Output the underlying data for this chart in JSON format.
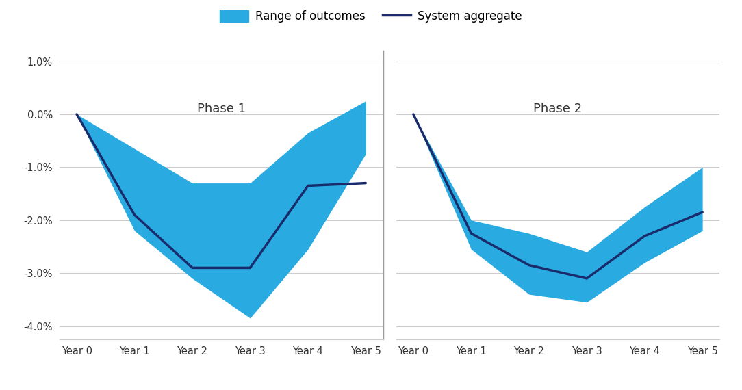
{
  "phase1": {
    "x": [
      0,
      1,
      2,
      3,
      4,
      5
    ],
    "line": [
      0.0,
      -1.9,
      -2.9,
      -2.9,
      -1.35,
      -1.3
    ],
    "upper": [
      0.0,
      -0.65,
      -1.3,
      -1.3,
      -0.35,
      0.25
    ],
    "lower": [
      0.0,
      -2.2,
      -3.1,
      -3.85,
      -2.55,
      -0.75
    ]
  },
  "phase2": {
    "x": [
      0,
      1,
      2,
      3,
      4,
      5
    ],
    "line": [
      0.0,
      -2.25,
      -2.85,
      -3.1,
      -2.3,
      -1.85
    ],
    "upper": [
      0.0,
      -2.0,
      -2.25,
      -2.6,
      -1.75,
      -1.0
    ],
    "lower": [
      0.0,
      -2.55,
      -3.4,
      -3.55,
      -2.8,
      -2.2
    ]
  },
  "ylim": [
    -4.25,
    1.2
  ],
  "yticks": [
    1.0,
    0.0,
    -1.0,
    -2.0,
    -3.0,
    -4.0
  ],
  "yticklabels": [
    "1.0%",
    "0.0%",
    "-1.0%",
    "-2.0%",
    "-3.0%",
    "-4.0%"
  ],
  "xtick_labels": [
    "Year 0",
    "Year 1",
    "Year 2",
    "Year 3",
    "Year 4",
    "Year 5"
  ],
  "fill_color": "#29ABE2",
  "line_color": "#1A2B6B",
  "fill_alpha": 1.0,
  "phase1_label": "Phase 1",
  "phase2_label": "Phase 2",
  "legend_range": "Range of outcomes",
  "legend_aggregate": "System aggregate",
  "background_color": "#ffffff",
  "grid_color": "#cccccc",
  "font_color": "#333333",
  "divider_color": "#999999"
}
